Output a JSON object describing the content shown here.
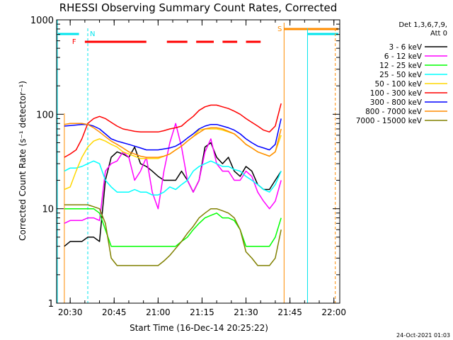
{
  "chart_data": {
    "type": "line",
    "title": "RHESSI Observing Summary Count Rates, Corrected",
    "xlabel": "Start Time (16-Dec-14 20:25:22)",
    "ylabel": "Corrected Count Rate (s⁻¹ detector⁻¹)",
    "ylog": true,
    "ylim": [
      1,
      1000
    ],
    "xlim": [
      "20:25:22",
      "22:02:00"
    ],
    "x_ticks": [
      "20:30",
      "20:45",
      "21:00",
      "21:15",
      "21:30",
      "21:45",
      "22:00"
    ],
    "y_ticks": [
      "1",
      "10",
      "100",
      "1000"
    ],
    "legend_header": [
      "Det 1,3,6,7,9,",
      "Att 0"
    ],
    "legend_position": "right",
    "flags": {
      "N": "N",
      "F": "F",
      "S": "S",
      "N_color": "#00e5ee",
      "F_color": "#ff0000",
      "S_color": "#ff8c00"
    },
    "timestamp": "24-Oct-2021 01:03",
    "x": [
      "20:28",
      "20:30",
      "20:32",
      "20:34",
      "20:36",
      "20:38",
      "20:40",
      "20:42",
      "20:44",
      "20:46",
      "20:48",
      "20:50",
      "20:52",
      "20:54",
      "20:56",
      "20:58",
      "21:00",
      "21:02",
      "21:04",
      "21:06",
      "21:08",
      "21:10",
      "21:12",
      "21:14",
      "21:16",
      "21:18",
      "21:20",
      "21:22",
      "21:24",
      "21:26",
      "21:28",
      "21:30",
      "21:32",
      "21:34",
      "21:36",
      "21:38",
      "21:40",
      "21:42"
    ],
    "series": [
      {
        "name": "3 - 6 keV",
        "color": "#000000",
        "values": [
          4,
          4.5,
          4.5,
          4.5,
          5,
          5,
          4.5,
          20,
          35,
          40,
          38,
          35,
          45,
          30,
          28,
          25,
          22,
          20,
          20,
          20,
          25,
          20,
          15,
          20,
          45,
          50,
          35,
          30,
          35,
          25,
          22,
          28,
          25,
          18,
          16,
          16,
          20,
          25
        ]
      },
      {
        "name": "6 - 12 keV",
        "color": "#ff00ff",
        "values": [
          7,
          7.5,
          7.5,
          7.5,
          8,
          8,
          7.5,
          25,
          30,
          32,
          40,
          35,
          20,
          25,
          35,
          15,
          10,
          25,
          50,
          80,
          45,
          20,
          15,
          20,
          40,
          55,
          30,
          25,
          25,
          20,
          20,
          25,
          22,
          15,
          12,
          10,
          12,
          20
        ]
      },
      {
        "name": "12 - 25 keV",
        "color": "#00ff00",
        "values": [
          10,
          10,
          10,
          10,
          10,
          10,
          9,
          6,
          4,
          4,
          4,
          4,
          4,
          4,
          4,
          4,
          4,
          4,
          4,
          4,
          4.5,
          5,
          6,
          7,
          8,
          8.5,
          9,
          8,
          8,
          7.5,
          6,
          4,
          4,
          4,
          4,
          4,
          5,
          8
        ]
      },
      {
        "name": "25 - 50 keV",
        "color": "#00ffff",
        "values": [
          25,
          27,
          27,
          28,
          30,
          32,
          30,
          20,
          17,
          15,
          15,
          15,
          16,
          15,
          15,
          14,
          14,
          15,
          17,
          16,
          18,
          20,
          25,
          28,
          30,
          32,
          30,
          28,
          28,
          26,
          25,
          22,
          20,
          18,
          16,
          15,
          18,
          25
        ]
      },
      {
        "name": "50 - 100 keV",
        "color": "#ffd700",
        "values": [
          16,
          17,
          25,
          35,
          45,
          52,
          55,
          52,
          48,
          45,
          40,
          38,
          36,
          34,
          34,
          34,
          34,
          36,
          38,
          42,
          46,
          52,
          58,
          68,
          70,
          70,
          70,
          68,
          65,
          62,
          55,
          48,
          44,
          40,
          38,
          36,
          40,
          60
        ]
      },
      {
        "name": "100 - 300 keV",
        "color": "#ff0000",
        "values": [
          35,
          38,
          42,
          55,
          80,
          90,
          95,
          90,
          82,
          75,
          70,
          68,
          66,
          65,
          65,
          65,
          65,
          67,
          70,
          72,
          75,
          85,
          95,
          110,
          120,
          125,
          125,
          120,
          115,
          108,
          100,
          90,
          82,
          75,
          68,
          65,
          75,
          130
        ]
      },
      {
        "name": "300 - 800 keV",
        "color": "#0000ff",
        "values": [
          75,
          76,
          77,
          78,
          78,
          75,
          70,
          62,
          55,
          52,
          50,
          48,
          46,
          44,
          42,
          42,
          42,
          43,
          44,
          46,
          50,
          56,
          62,
          70,
          75,
          78,
          78,
          75,
          72,
          68,
          62,
          55,
          50,
          46,
          44,
          42,
          48,
          90
        ]
      },
      {
        "name": "800 - 7000 keV",
        "color": "#ff8c00",
        "values": [
          78,
          80,
          80,
          80,
          78,
          72,
          65,
          58,
          52,
          48,
          44,
          40,
          38,
          36,
          35,
          35,
          35,
          36,
          38,
          42,
          46,
          52,
          58,
          64,
          70,
          72,
          72,
          70,
          66,
          62,
          55,
          48,
          44,
          40,
          38,
          36,
          40,
          70
        ]
      },
      {
        "name": "7000 - 15000 keV",
        "color": "#808000",
        "values": [
          11,
          11,
          11,
          11,
          11,
          10.5,
          10,
          7,
          3,
          2.5,
          2.5,
          2.5,
          2.5,
          2.5,
          2.5,
          2.5,
          2.5,
          2.8,
          3.2,
          3.8,
          4.5,
          5.5,
          6.5,
          8,
          9,
          10,
          10,
          9.5,
          9,
          8,
          6,
          3.5,
          3,
          2.5,
          2.5,
          2.5,
          3,
          6
        ]
      }
    ]
  }
}
